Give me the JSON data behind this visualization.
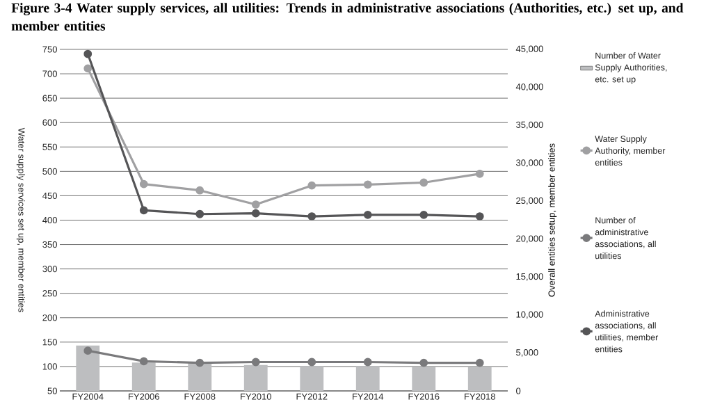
{
  "chart_data": {
    "type": "bar",
    "title": "Figure 3-4 Water supply services, all utilities: Trends in administrative associations (Authorities, etc.) set up, and member entities",
    "ylabel": "Water supply services set up, member entities",
    "y2label": "Overall  entities setup, member entities",
    "categories": [
      "FY2004",
      "FY2006",
      "FY2008",
      "FY2010",
      "FY2012",
      "FY2014",
      "FY2016",
      "FY2018"
    ],
    "series": [
      {
        "name": "Number of Water Supply Authorities, etc. set up",
        "color": "#bdbec0",
        "values": [
          143,
          108,
          107,
          103,
          101,
          101,
          100,
          100
        ]
      },
      {
        "name": "Water Supply Authority, member entities",
        "type": "line",
        "color": "#a0a0a2",
        "values": [
          711,
          474,
          461,
          432,
          471,
          473,
          477,
          495
        ]
      },
      {
        "name": "Number of administrative associations, all utilities",
        "type": "line",
        "axis": "y2",
        "color": "#7a7a7c",
        "values": [
          5300,
          3900,
          3700,
          3800,
          3800,
          3800,
          3700,
          3700
        ]
      },
      {
        "name": "Administrative associations, all utilities,  member entities",
        "type": "line",
        "axis": "y2",
        "color": "#555557",
        "values": [
          44400,
          23800,
          23300,
          23400,
          23000,
          23200,
          23200,
          23000
        ]
      }
    ],
    "ylim": [
      50,
      750
    ],
    "yticks": [
      50,
      100,
      150,
      200,
      250,
      300,
      350,
      400,
      450,
      500,
      550,
      600,
      650,
      700,
      750
    ],
    "y2lim": [
      0,
      45000
    ],
    "y2ticks": [
      {
        "value": 0,
        "label": "0"
      },
      {
        "value": 5000,
        "label": "5,000"
      },
      {
        "value": 10000,
        "label": "10,000"
      },
      {
        "value": 15000,
        "label": "15,000"
      },
      {
        "value": 20000,
        "label": "20,000"
      },
      {
        "value": 25000,
        "label": "25,000"
      },
      {
        "value": 30000,
        "label": "30,000"
      },
      {
        "value": 35000,
        "label": "35,000"
      },
      {
        "value": 40000,
        "label": "40,000"
      },
      {
        "value": 45000,
        "label": "45,000"
      }
    ],
    "grid": "y",
    "legend": "right",
    "marker": "circle"
  }
}
